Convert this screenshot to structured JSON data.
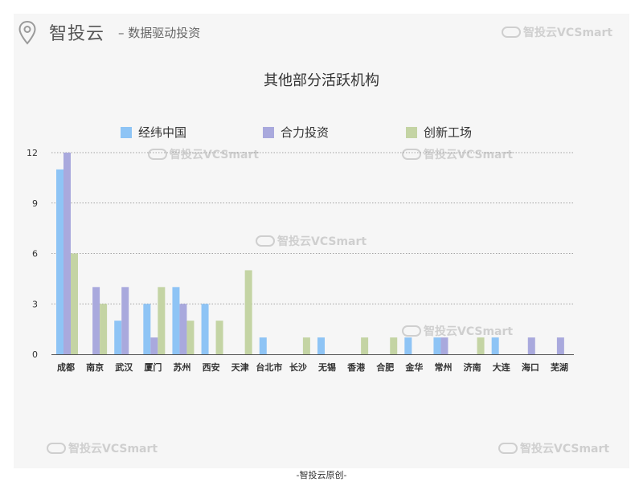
{
  "header": {
    "brand": "智投云",
    "slogan": "– 数据驱动投资",
    "pin_icon": "map-pin-icon"
  },
  "watermark": {
    "text": "智投云VCSmart",
    "icon": "cloud-logo-icon"
  },
  "footer": {
    "text": "-智投云原创-"
  },
  "colors": {
    "series1": "#8ec4f5",
    "series2": "#a9a9dd",
    "series3": "#c4d4a4",
    "panel": "#f6f6f6"
  },
  "chart_data": {
    "type": "bar",
    "title": "其他部分活跃机构",
    "xlabel": "",
    "ylabel": "",
    "ylim": [
      0,
      12
    ],
    "yticks": [
      0,
      3,
      6,
      9,
      12
    ],
    "grid": true,
    "legend_position": "top",
    "categories": [
      "成都",
      "南京",
      "武汉",
      "厦门",
      "苏州",
      "西安",
      "天津",
      "台北市",
      "长沙",
      "无锡",
      "香港",
      "合肥",
      "金华",
      "常州",
      "济南",
      "大连",
      "海口",
      "芜湖"
    ],
    "series": [
      {
        "name": "经纬中国",
        "values": [
          11,
          0,
          2,
          3,
          4,
          3,
          0,
          1,
          0,
          1,
          0,
          0,
          1,
          1,
          0,
          1,
          0,
          0
        ]
      },
      {
        "name": "合力投资",
        "values": [
          12,
          4,
          4,
          1,
          3,
          0,
          0,
          0,
          0,
          0,
          0,
          0,
          0,
          1,
          0,
          0,
          1,
          1
        ]
      },
      {
        "name": "创新工场",
        "values": [
          6,
          3,
          0,
          4,
          2,
          2,
          5,
          0,
          1,
          0,
          1,
          1,
          0,
          0,
          1,
          0,
          0,
          0
        ]
      }
    ]
  }
}
